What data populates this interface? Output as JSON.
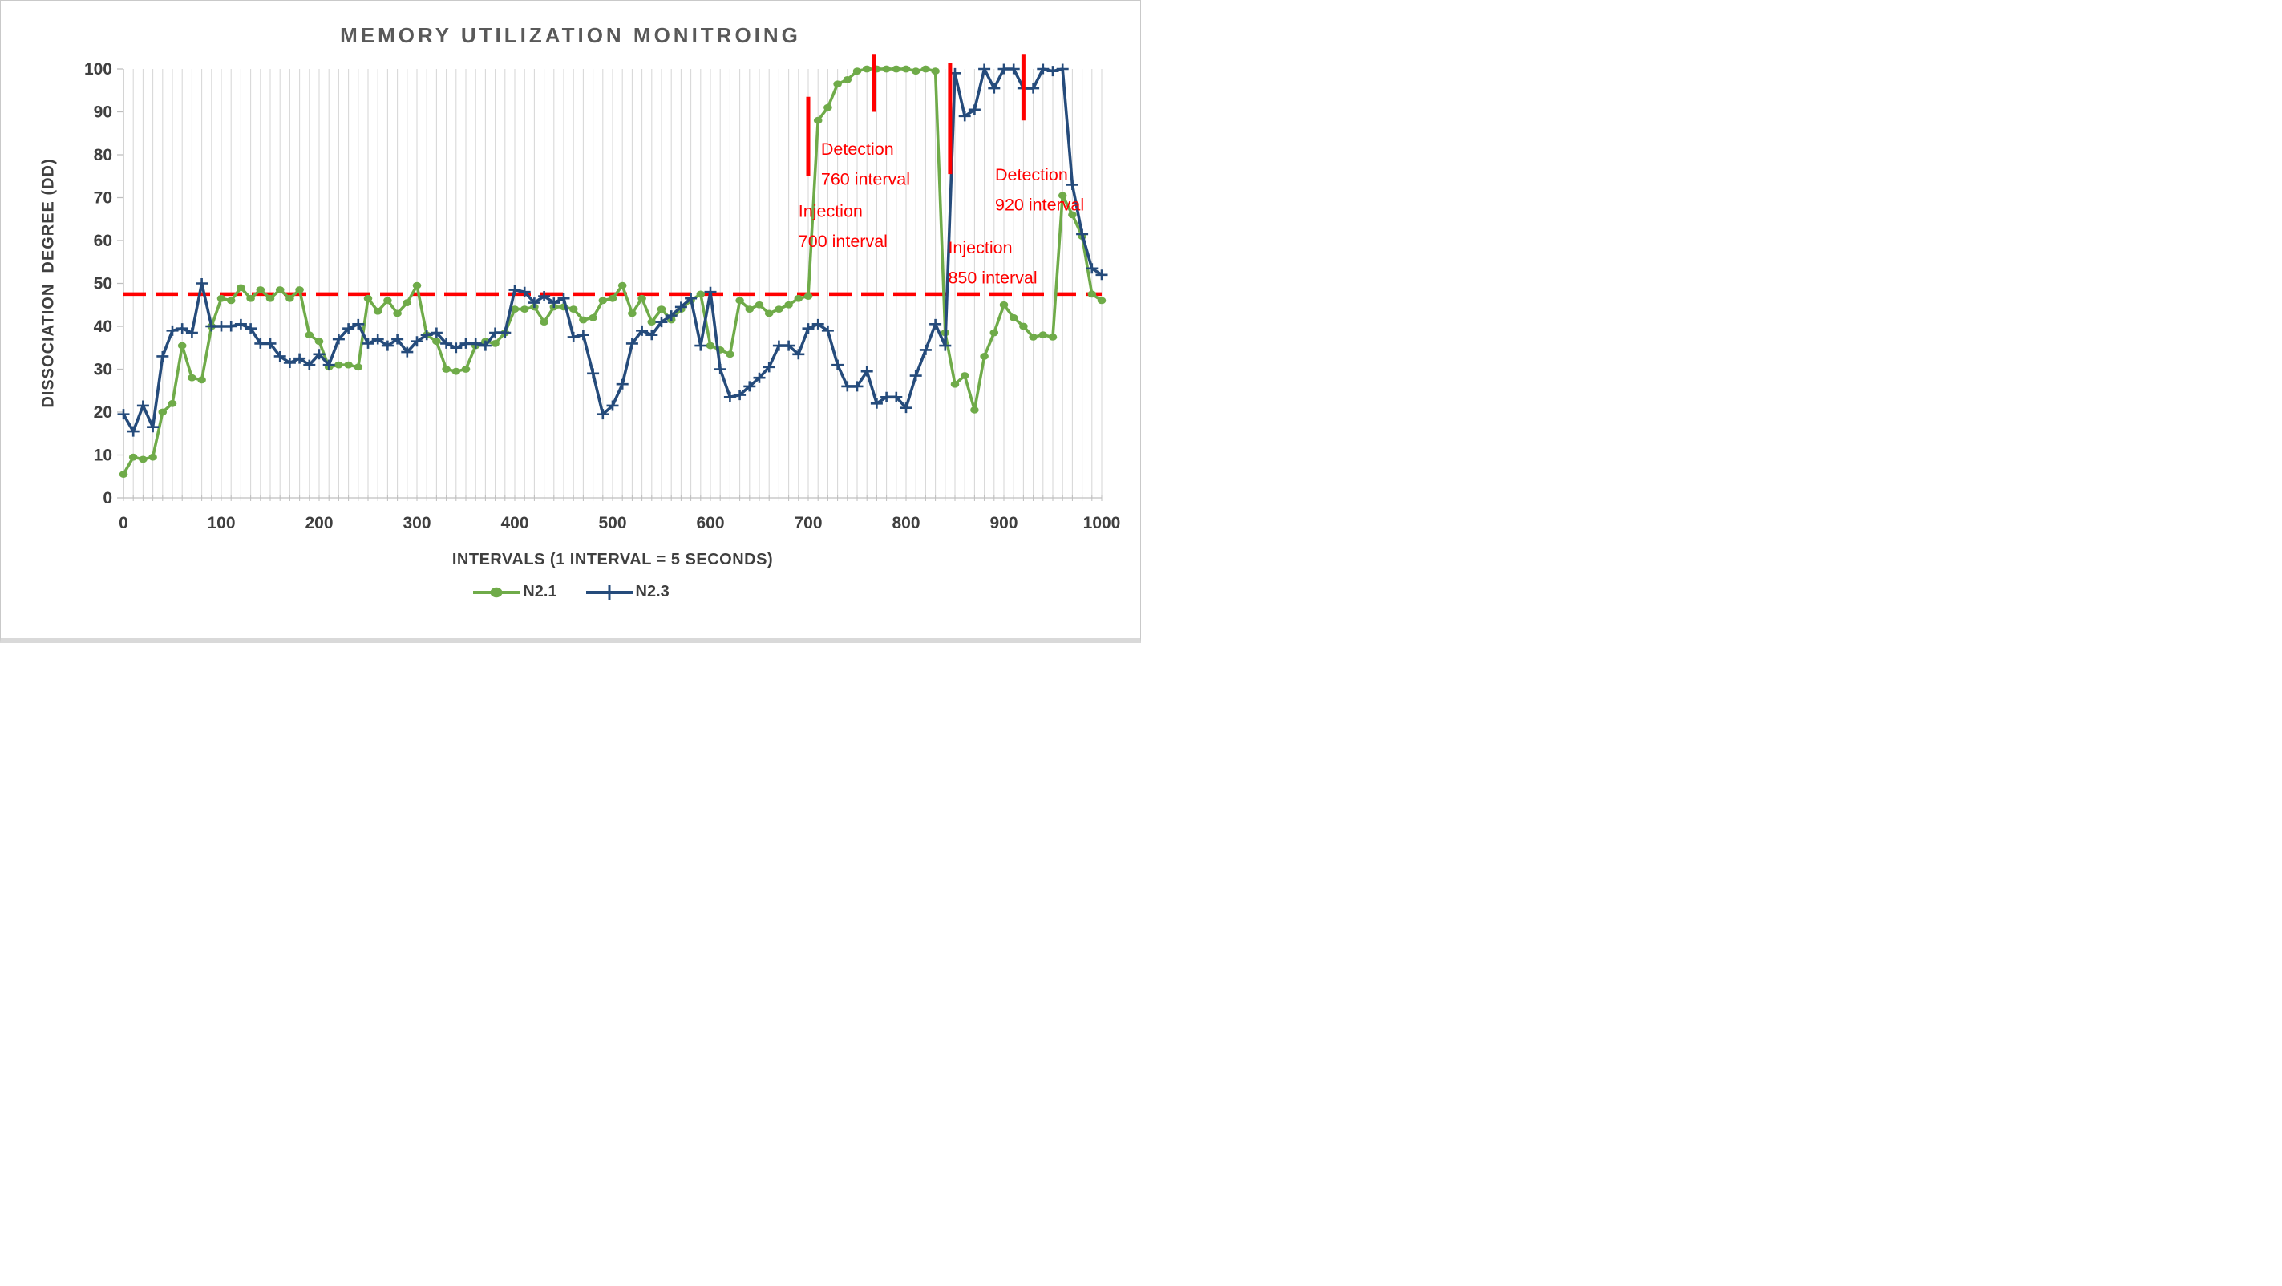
{
  "chart_data": {
    "type": "line",
    "title": "MEMORY UTILIZATION MONITROING",
    "xlabel": "INTERVALS (1 INTERVAL = 5 SECONDS)",
    "ylabel": "DISSOCIATION  DEGREE (DD)",
    "xlim": [
      0,
      1000
    ],
    "ylim": [
      0,
      100
    ],
    "x_tick_labels": [
      0,
      100,
      200,
      300,
      400,
      500,
      600,
      700,
      800,
      900,
      1000
    ],
    "y_tick_labels": [
      0,
      10,
      20,
      30,
      40,
      50,
      60,
      70,
      80,
      90,
      100
    ],
    "x_minor_step": 10,
    "grid": {
      "vertical": true,
      "horizontal": false,
      "color": "#d9d9d9"
    },
    "axis_color": "#bfbfbf",
    "tick_label_color": "#3f3f3f",
    "title_color": "#595959",
    "x_start": 0,
    "x_step": 10,
    "series": [
      {
        "name": "N2.1",
        "color": "#6fab49",
        "marker": "ellipse",
        "values": [
          5.5,
          9.5,
          9,
          9.5,
          20,
          22,
          35.5,
          28,
          27.5,
          40,
          46.5,
          46,
          49,
          46.5,
          48.5,
          46.5,
          48.5,
          46.5,
          48.5,
          38,
          36.5,
          30.5,
          31,
          31,
          30.5,
          46.5,
          43.5,
          46,
          43,
          45.5,
          49.5,
          38,
          36.5,
          30,
          29.5,
          30,
          35.5,
          36.5,
          36,
          38.5,
          44,
          44,
          44.5,
          41,
          44.5,
          44.5,
          44,
          41.5,
          42,
          46,
          46.5,
          49.5,
          43,
          46.5,
          41,
          44,
          41.5,
          44,
          46,
          47.5,
          35.5,
          34.5,
          33.5,
          46,
          44,
          45,
          43,
          44,
          45,
          46.5,
          47,
          88,
          91,
          96.5,
          97.5,
          99.5,
          100,
          100,
          100,
          100,
          100,
          99.5,
          100,
          99.5,
          38.5,
          26.5,
          28.5,
          20.5,
          33,
          38.5,
          45,
          42,
          40,
          37.5,
          38,
          37.5,
          70.5,
          66,
          61,
          47.5,
          46
        ]
      },
      {
        "name": "N2.3",
        "color": "#254b7b",
        "marker": "plus",
        "values": [
          19.5,
          15.5,
          21.5,
          16.5,
          33,
          39,
          39.5,
          38.5,
          50,
          40,
          40,
          40,
          40.5,
          39.5,
          36,
          36,
          33,
          31.5,
          32.5,
          31,
          33.5,
          31,
          37,
          39.5,
          40.5,
          36,
          37,
          35.5,
          37,
          34,
          36.5,
          38,
          38.5,
          36,
          35,
          36,
          36,
          35.5,
          38.5,
          38.5,
          48.5,
          48,
          45.5,
          47,
          45.5,
          46.5,
          37.5,
          38,
          29,
          19.5,
          21.5,
          26.5,
          36,
          39,
          38,
          41,
          42.5,
          44.5,
          46.5,
          35.5,
          48,
          30,
          23.5,
          24,
          26,
          28,
          30.5,
          35.5,
          35.5,
          33.5,
          39.5,
          40.5,
          39,
          31,
          26,
          26,
          29.5,
          22,
          23.5,
          23.5,
          21,
          28.5,
          34.5,
          40.5,
          35.5,
          99,
          89,
          90.5,
          100,
          95.5,
          100,
          100,
          95.5,
          95.5,
          100,
          99.5,
          100,
          73,
          61.5,
          53.5,
          52
        ]
      }
    ],
    "threshold": {
      "value": 47.5,
      "color": "#ff0000",
      "style": "dashed"
    },
    "annotations": [
      {
        "id": "injection-700",
        "lines": [
          "Injection",
          "700 interval"
        ],
        "tick": {
          "x": 700,
          "y_from": 75,
          "y_to": 93.5
        },
        "text": {
          "x": 690,
          "y": 65.5,
          "line_gap": 7
        },
        "color": "#ff0000"
      },
      {
        "id": "detection-760",
        "lines": [
          "Detection",
          "760 interval"
        ],
        "tick": {
          "x": 767,
          "y_from": 90,
          "y_to": 103.5
        },
        "text": {
          "x": 713,
          "y": 80,
          "line_gap": 7
        },
        "color": "#ff0000"
      },
      {
        "id": "injection-850",
        "lines": [
          "Injection",
          "850 interval"
        ],
        "tick": {
          "x": 845,
          "y_from": 75.5,
          "y_to": 101.5
        },
        "text": {
          "x": 843,
          "y": 57,
          "line_gap": 7
        },
        "color": "#ff0000"
      },
      {
        "id": "detection-920",
        "lines": [
          "Detection",
          "920 interval"
        ],
        "tick": {
          "x": 920,
          "y_from": 88,
          "y_to": 103.5
        },
        "text": {
          "x": 891,
          "y": 74,
          "line_gap": 7
        },
        "color": "#ff0000"
      }
    ],
    "legend": {
      "position": "bottom",
      "entries": [
        "N2.1",
        "N2.3"
      ]
    }
  }
}
